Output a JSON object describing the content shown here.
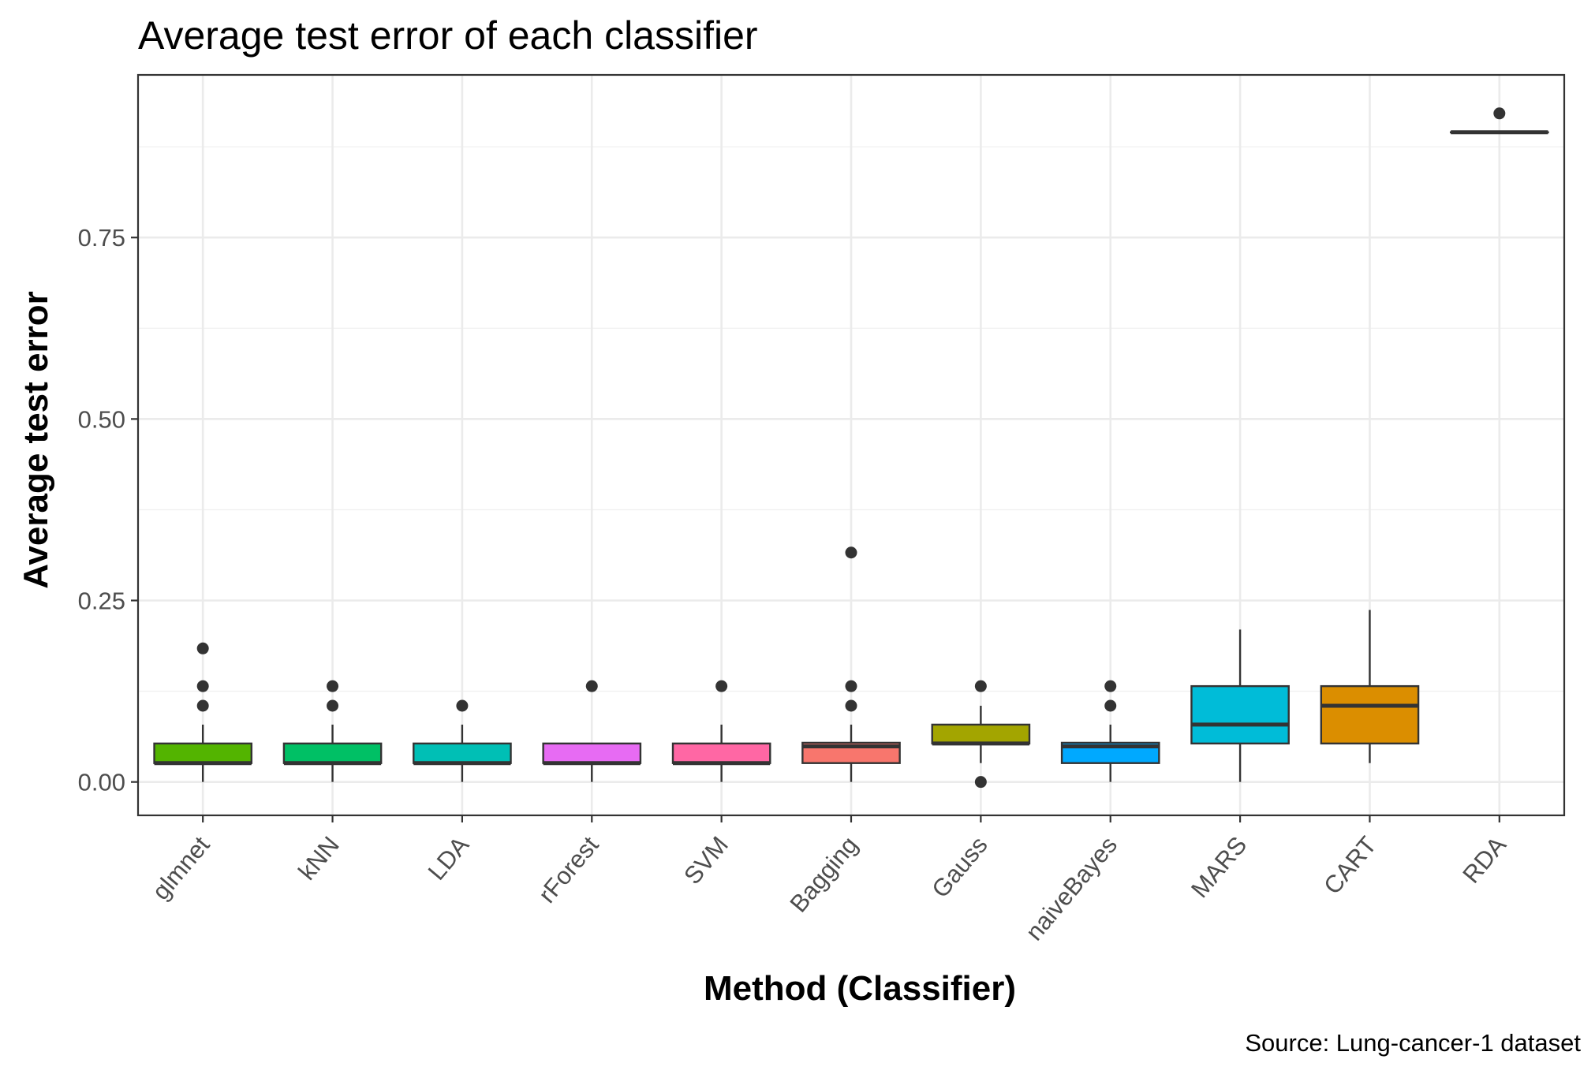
{
  "chart_data": {
    "type": "boxplot",
    "title": "Average test error of each classifier",
    "xlabel": "Method (Classifier)",
    "ylabel": "Average test error",
    "caption": "Source: Lung-cancer-1 dataset",
    "ylim": [
      -0.046,
      0.974
    ],
    "yticks": [
      0.0,
      0.25,
      0.5,
      0.75
    ],
    "ytick_labels": [
      "0.00",
      "0.25",
      "0.50",
      "0.75"
    ],
    "grid": true,
    "categories": [
      "glmnet",
      "kNN",
      "LDA",
      "rForest",
      "SVM",
      "Bagging",
      "Gauss",
      "naiveBayes",
      "MARS",
      "CART",
      "RDA"
    ],
    "boxes": [
      {
        "name": "glmnet",
        "color": "#53B400",
        "whisker_low": 0.0,
        "q1": 0.026,
        "median": 0.026,
        "q3": 0.053,
        "whisker_high": 0.079,
        "outliers": [
          0.105,
          0.132,
          0.184
        ]
      },
      {
        "name": "kNN",
        "color": "#00C065",
        "whisker_low": 0.0,
        "q1": 0.026,
        "median": 0.026,
        "q3": 0.053,
        "whisker_high": 0.079,
        "outliers": [
          0.105,
          0.132
        ]
      },
      {
        "name": "LDA",
        "color": "#00BFB5",
        "whisker_low": 0.0,
        "q1": 0.026,
        "median": 0.026,
        "q3": 0.053,
        "whisker_high": 0.079,
        "outliers": [
          0.105
        ]
      },
      {
        "name": "rForest",
        "color": "#E76BF3",
        "whisker_low": 0.0,
        "q1": 0.026,
        "median": 0.026,
        "q3": 0.053,
        "whisker_high": 0.053,
        "outliers": [
          0.132
        ]
      },
      {
        "name": "SVM",
        "color": "#FF67A4",
        "whisker_low": 0.0,
        "q1": 0.026,
        "median": 0.026,
        "q3": 0.053,
        "whisker_high": 0.079,
        "outliers": [
          0.132
        ]
      },
      {
        "name": "Bagging",
        "color": "#F8766D",
        "whisker_low": 0.0,
        "q1": 0.026,
        "median": 0.049,
        "q3": 0.054,
        "whisker_high": 0.079,
        "outliers": [
          0.105,
          0.132,
          0.316
        ]
      },
      {
        "name": "Gauss",
        "color": "#A3A500",
        "whisker_low": 0.026,
        "q1": 0.053,
        "median": 0.053,
        "q3": 0.079,
        "whisker_high": 0.105,
        "outliers": [
          0.0,
          0.132
        ]
      },
      {
        "name": "naiveBayes",
        "color": "#00A9FF",
        "whisker_low": 0.0,
        "q1": 0.026,
        "median": 0.049,
        "q3": 0.054,
        "whisker_high": 0.079,
        "outliers": [
          0.105,
          0.132
        ]
      },
      {
        "name": "MARS",
        "color": "#00BCD8",
        "whisker_low": 0.0,
        "q1": 0.053,
        "median": 0.079,
        "q3": 0.132,
        "whisker_high": 0.21,
        "outliers": []
      },
      {
        "name": "CART",
        "color": "#DB8E00",
        "whisker_low": 0.026,
        "q1": 0.053,
        "median": 0.105,
        "q3": 0.132,
        "whisker_high": 0.237,
        "outliers": []
      },
      {
        "name": "RDA",
        "color": "#FFFFFF",
        "whisker_low": 0.895,
        "q1": 0.895,
        "median": 0.895,
        "q3": 0.895,
        "whisker_high": 0.895,
        "outliers": [
          0.921
        ]
      }
    ]
  }
}
